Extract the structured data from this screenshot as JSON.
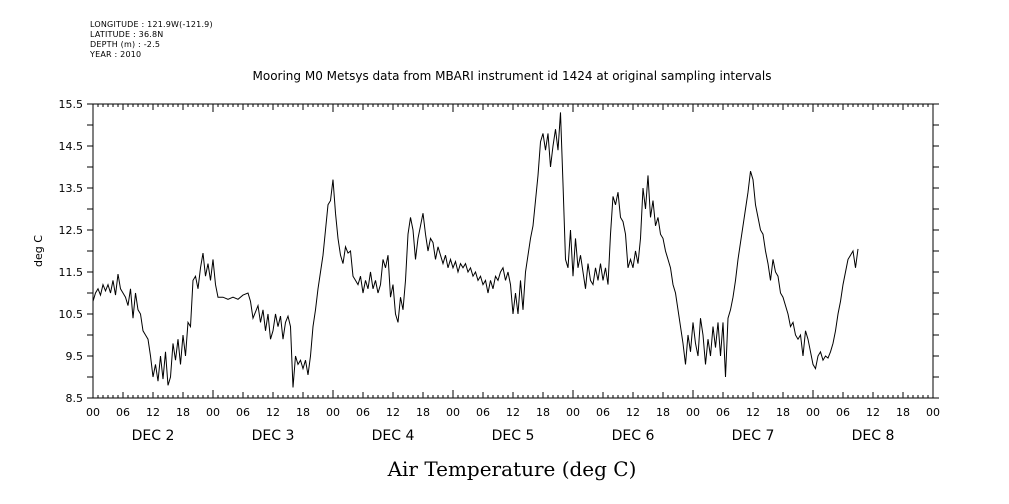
{
  "header": {
    "longitude": "LONGITUDE : 121.9W(-121.9)",
    "latitude": "LATITUDE : 36.8N",
    "depth": "DEPTH (m) : -2.5",
    "year": "YEAR : 2010"
  },
  "chart_data": {
    "type": "line",
    "title": "Mooring M0 Metsys data from MBARI instrument id 1424 at original sampling intervals",
    "xlabel": "Air Temperature (deg C)",
    "ylabel": "deg C",
    "xlim_hours": [
      0,
      168
    ],
    "ylim": [
      8.5,
      15.5
    ],
    "y_ticks": [
      "8.5",
      "9.5",
      "10.5",
      "11.5",
      "12.5",
      "13.5",
      "14.5",
      "15.5"
    ],
    "x_hour_ticks": [
      "00",
      "06",
      "12",
      "18",
      "00",
      "06",
      "12",
      "18",
      "00",
      "06",
      "12",
      "18",
      "00",
      "06",
      "12",
      "18",
      "00",
      "06",
      "12",
      "18",
      "00",
      "06",
      "12",
      "18",
      "00",
      "06",
      "12",
      "18",
      "00"
    ],
    "day_labels": [
      "DEC 2",
      "DEC 3",
      "DEC 4",
      "DEC 5",
      "DEC 6",
      "DEC 7",
      "DEC 8"
    ],
    "grid": false,
    "series": [
      {
        "color": "#000000",
        "points": [
          [
            0,
            10.8
          ],
          [
            0.5,
            11.0
          ],
          [
            1,
            11.1
          ],
          [
            1.5,
            10.95
          ],
          [
            2,
            11.2
          ],
          [
            2.5,
            11.05
          ],
          [
            3,
            11.2
          ],
          [
            3.5,
            11.0
          ],
          [
            4,
            11.3
          ],
          [
            4.5,
            10.95
          ],
          [
            5,
            11.45
          ],
          [
            5.5,
            11.1
          ],
          [
            6,
            11.0
          ],
          [
            6.5,
            10.9
          ],
          [
            7,
            10.7
          ],
          [
            7.5,
            11.1
          ],
          [
            8,
            10.4
          ],
          [
            8.5,
            11.0
          ],
          [
            9,
            10.6
          ],
          [
            9.5,
            10.5
          ],
          [
            10,
            10.1
          ],
          [
            10.5,
            10.0
          ],
          [
            11,
            9.9
          ],
          [
            11.5,
            9.5
          ],
          [
            12,
            9.0
          ],
          [
            12.5,
            9.3
          ],
          [
            13,
            8.9
          ],
          [
            13.5,
            9.5
          ],
          [
            14,
            8.95
          ],
          [
            14.5,
            9.6
          ],
          [
            15,
            8.8
          ],
          [
            15.5,
            9.0
          ],
          [
            16,
            9.8
          ],
          [
            16.5,
            9.4
          ],
          [
            17,
            9.9
          ],
          [
            17.5,
            9.3
          ],
          [
            18,
            10.0
          ],
          [
            18.5,
            9.5
          ],
          [
            19,
            10.3
          ],
          [
            19.5,
            10.2
          ],
          [
            20,
            11.3
          ],
          [
            20.5,
            11.4
          ],
          [
            21,
            11.1
          ],
          [
            21.5,
            11.6
          ],
          [
            22,
            11.95
          ],
          [
            22.5,
            11.4
          ],
          [
            23,
            11.7
          ],
          [
            23.5,
            11.3
          ],
          [
            24,
            11.8
          ],
          [
            24.5,
            11.2
          ],
          [
            25,
            10.9
          ],
          [
            26,
            10.9
          ],
          [
            27,
            10.85
          ],
          [
            28,
            10.9
          ],
          [
            29,
            10.85
          ],
          [
            30,
            10.95
          ],
          [
            31,
            11.0
          ],
          [
            31.5,
            10.8
          ],
          [
            32,
            10.4
          ],
          [
            32.5,
            10.55
          ],
          [
            33,
            10.7
          ],
          [
            33.5,
            10.3
          ],
          [
            34,
            10.6
          ],
          [
            34.5,
            10.1
          ],
          [
            35,
            10.5
          ],
          [
            35.5,
            9.9
          ],
          [
            36,
            10.1
          ],
          [
            36.5,
            10.5
          ],
          [
            37,
            10.2
          ],
          [
            37.5,
            10.45
          ],
          [
            38,
            9.9
          ],
          [
            38.5,
            10.3
          ],
          [
            39,
            10.45
          ],
          [
            39.5,
            10.2
          ],
          [
            40,
            8.75
          ],
          [
            40.5,
            9.5
          ],
          [
            41,
            9.3
          ],
          [
            41.5,
            9.4
          ],
          [
            42,
            9.2
          ],
          [
            42.5,
            9.4
          ],
          [
            43,
            9.05
          ],
          [
            43.5,
            9.5
          ],
          [
            44,
            10.2
          ],
          [
            44.5,
            10.6
          ],
          [
            45,
            11.1
          ],
          [
            45.5,
            11.5
          ],
          [
            46,
            11.9
          ],
          [
            46.5,
            12.5
          ],
          [
            47,
            13.1
          ],
          [
            47.5,
            13.2
          ],
          [
            48,
            13.7
          ],
          [
            48.5,
            12.9
          ],
          [
            49,
            12.3
          ],
          [
            49.5,
            11.9
          ],
          [
            50,
            11.7
          ],
          [
            50.5,
            12.1
          ],
          [
            51,
            11.95
          ],
          [
            51.5,
            12.0
          ],
          [
            52,
            11.4
          ],
          [
            52.5,
            11.3
          ],
          [
            53,
            11.2
          ],
          [
            53.5,
            11.4
          ],
          [
            54,
            11.0
          ],
          [
            54.5,
            11.3
          ],
          [
            55,
            11.1
          ],
          [
            55.5,
            11.5
          ],
          [
            56,
            11.1
          ],
          [
            56.5,
            11.3
          ],
          [
            57,
            11.0
          ],
          [
            57.5,
            11.2
          ],
          [
            58,
            11.8
          ],
          [
            58.5,
            11.6
          ],
          [
            59,
            11.9
          ],
          [
            59.5,
            10.9
          ],
          [
            60,
            11.2
          ],
          [
            60.5,
            10.5
          ],
          [
            61,
            10.3
          ],
          [
            61.5,
            10.9
          ],
          [
            62,
            10.6
          ],
          [
            62.5,
            11.3
          ],
          [
            63,
            12.4
          ],
          [
            63.5,
            12.8
          ],
          [
            64,
            12.5
          ],
          [
            64.5,
            11.8
          ],
          [
            65,
            12.3
          ],
          [
            65.5,
            12.6
          ],
          [
            66,
            12.9
          ],
          [
            66.5,
            12.4
          ],
          [
            67,
            12.0
          ],
          [
            67.5,
            12.3
          ],
          [
            68,
            12.2
          ],
          [
            68.5,
            11.8
          ],
          [
            69,
            12.1
          ],
          [
            69.5,
            11.9
          ],
          [
            70,
            11.7
          ],
          [
            70.5,
            11.9
          ],
          [
            71,
            11.6
          ],
          [
            71.5,
            11.8
          ],
          [
            72,
            11.6
          ],
          [
            72.5,
            11.75
          ],
          [
            73,
            11.5
          ],
          [
            73.5,
            11.7
          ],
          [
            74,
            11.6
          ],
          [
            74.5,
            11.7
          ],
          [
            75,
            11.5
          ],
          [
            75.5,
            11.6
          ],
          [
            76,
            11.4
          ],
          [
            76.5,
            11.5
          ],
          [
            77,
            11.3
          ],
          [
            77.5,
            11.4
          ],
          [
            78,
            11.2
          ],
          [
            78.5,
            11.3
          ],
          [
            79,
            11.0
          ],
          [
            79.5,
            11.3
          ],
          [
            80,
            11.1
          ],
          [
            80.5,
            11.4
          ],
          [
            81,
            11.3
          ],
          [
            81.5,
            11.5
          ],
          [
            82,
            11.6
          ],
          [
            82.5,
            11.3
          ],
          [
            83,
            11.5
          ],
          [
            83.5,
            11.2
          ],
          [
            84,
            10.5
          ],
          [
            84.5,
            11.0
          ],
          [
            85,
            10.5
          ],
          [
            85.5,
            11.3
          ],
          [
            86,
            10.6
          ],
          [
            86.5,
            11.5
          ],
          [
            87,
            11.9
          ],
          [
            87.5,
            12.3
          ],
          [
            88,
            12.6
          ],
          [
            88.5,
            13.2
          ],
          [
            89,
            13.8
          ],
          [
            89.5,
            14.6
          ],
          [
            90,
            14.8
          ],
          [
            90.5,
            14.4
          ],
          [
            91,
            14.8
          ],
          [
            91.5,
            14.0
          ],
          [
            92,
            14.5
          ],
          [
            92.5,
            14.9
          ],
          [
            93,
            14.4
          ],
          [
            93.5,
            15.3
          ],
          [
            94,
            13.6
          ],
          [
            94.5,
            11.8
          ],
          [
            95,
            11.6
          ],
          [
            95.5,
            12.5
          ],
          [
            96,
            11.4
          ],
          [
            96.5,
            12.3
          ],
          [
            97,
            11.6
          ],
          [
            97.5,
            11.9
          ],
          [
            98,
            11.5
          ],
          [
            98.5,
            11.1
          ],
          [
            99,
            11.7
          ],
          [
            99.5,
            11.3
          ],
          [
            100,
            11.2
          ],
          [
            100.5,
            11.6
          ],
          [
            101,
            11.3
          ],
          [
            101.5,
            11.7
          ],
          [
            102,
            11.3
          ],
          [
            102.5,
            11.6
          ],
          [
            103,
            11.2
          ],
          [
            103.5,
            12.4
          ],
          [
            104,
            13.3
          ],
          [
            104.5,
            13.1
          ],
          [
            105,
            13.4
          ],
          [
            105.5,
            12.8
          ],
          [
            106,
            12.7
          ],
          [
            106.5,
            12.4
          ],
          [
            107,
            11.6
          ],
          [
            107.5,
            11.8
          ],
          [
            108,
            11.6
          ],
          [
            108.5,
            12.0
          ],
          [
            109,
            11.7
          ],
          [
            109.5,
            12.3
          ],
          [
            110,
            13.5
          ],
          [
            110.5,
            13.0
          ],
          [
            111,
            13.8
          ],
          [
            111.5,
            12.8
          ],
          [
            112,
            13.2
          ],
          [
            112.5,
            12.6
          ],
          [
            113,
            12.8
          ],
          [
            113.5,
            12.4
          ],
          [
            114,
            12.3
          ],
          [
            114.5,
            12.0
          ],
          [
            115,
            11.8
          ],
          [
            115.5,
            11.6
          ],
          [
            116,
            11.2
          ],
          [
            116.5,
            11.0
          ],
          [
            117,
            10.6
          ],
          [
            117.5,
            10.2
          ],
          [
            118,
            9.8
          ],
          [
            118.5,
            9.3
          ],
          [
            119,
            10.0
          ],
          [
            119.5,
            9.6
          ],
          [
            120,
            10.3
          ],
          [
            120.5,
            9.8
          ],
          [
            121,
            9.5
          ],
          [
            121.5,
            10.4
          ],
          [
            122,
            10.0
          ],
          [
            122.5,
            9.3
          ],
          [
            123,
            9.9
          ],
          [
            123.5,
            9.5
          ],
          [
            124,
            10.2
          ],
          [
            124.5,
            9.7
          ],
          [
            125,
            10.3
          ],
          [
            125.5,
            9.5
          ],
          [
            126,
            10.3
          ],
          [
            126.5,
            9.0
          ],
          [
            127,
            10.4
          ],
          [
            127.5,
            10.6
          ],
          [
            128,
            10.9
          ],
          [
            128.5,
            11.3
          ],
          [
            129,
            11.8
          ],
          [
            129.5,
            12.2
          ],
          [
            130,
            12.6
          ],
          [
            130.5,
            13.0
          ],
          [
            131,
            13.4
          ],
          [
            131.5,
            13.9
          ],
          [
            132,
            13.7
          ],
          [
            132.5,
            13.1
          ],
          [
            133,
            12.8
          ],
          [
            133.5,
            12.5
          ],
          [
            134,
            12.4
          ],
          [
            134.5,
            12.0
          ],
          [
            135,
            11.7
          ],
          [
            135.5,
            11.3
          ],
          [
            136,
            11.8
          ],
          [
            136.5,
            11.5
          ],
          [
            137,
            11.4
          ],
          [
            137.5,
            11.0
          ],
          [
            138,
            10.9
          ],
          [
            138.5,
            10.7
          ],
          [
            139,
            10.5
          ],
          [
            139.5,
            10.2
          ],
          [
            140,
            10.3
          ],
          [
            140.5,
            10.0
          ],
          [
            141,
            9.9
          ],
          [
            141.5,
            10.0
          ],
          [
            142,
            9.5
          ],
          [
            142.5,
            10.1
          ],
          [
            143,
            9.9
          ],
          [
            143.5,
            9.6
          ],
          [
            144,
            9.3
          ],
          [
            144.5,
            9.2
          ],
          [
            145,
            9.5
          ],
          [
            145.5,
            9.6
          ],
          [
            146,
            9.4
          ],
          [
            146.5,
            9.5
          ],
          [
            147,
            9.45
          ],
          [
            147.5,
            9.6
          ],
          [
            148,
            9.8
          ],
          [
            148.5,
            10.1
          ],
          [
            149,
            10.5
          ],
          [
            149.5,
            10.8
          ],
          [
            150,
            11.2
          ],
          [
            150.5,
            11.5
          ],
          [
            151,
            11.8
          ],
          [
            151.5,
            11.9
          ],
          [
            152,
            12.0
          ],
          [
            152.5,
            11.6
          ],
          [
            153,
            12.05
          ]
        ]
      }
    ]
  }
}
